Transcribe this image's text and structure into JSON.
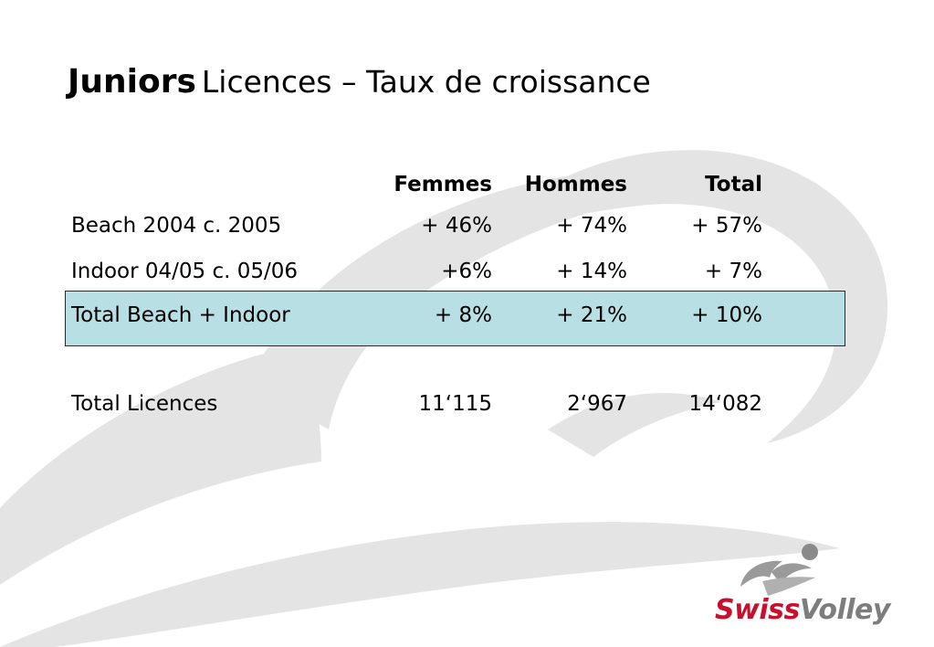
{
  "colors": {
    "background": "#ffffff",
    "text": "#000000",
    "highlight_fill": "#b8dfe4",
    "highlight_border": "#2a2a2a",
    "watermark": "#e4e4e4",
    "brand_red": "#c8102e",
    "brand_gray": "#7d7d7d"
  },
  "title": {
    "bold": "Juniors",
    "rest": "Licences – Taux de croissance"
  },
  "table": {
    "headers": [
      "",
      "Femmes",
      "Hommes",
      "Total"
    ],
    "rows": [
      {
        "label": "Beach 2004 c. 2005",
        "femmes": "+ 46%",
        "hommes": "+ 74%",
        "total": "+ 57%",
        "highlighted": false
      },
      {
        "label": "Indoor 04/05 c. 05/06",
        "femmes": "+6%",
        "hommes": "+ 14%",
        "total": "+ 7%",
        "highlighted": false
      },
      {
        "label": "Total Beach + Indoor",
        "femmes": "+ 8%",
        "hommes": "+ 21%",
        "total": "+ 10%",
        "highlighted": true
      },
      {
        "label": "Total Licences",
        "femmes": "11‘115",
        "hommes": "2‘967",
        "total": "14‘082",
        "highlighted": false
      }
    ]
  },
  "logo": {
    "swiss": "Swiss",
    "volley": "Volley",
    "mark_icon": "volleyball-player-icon"
  }
}
